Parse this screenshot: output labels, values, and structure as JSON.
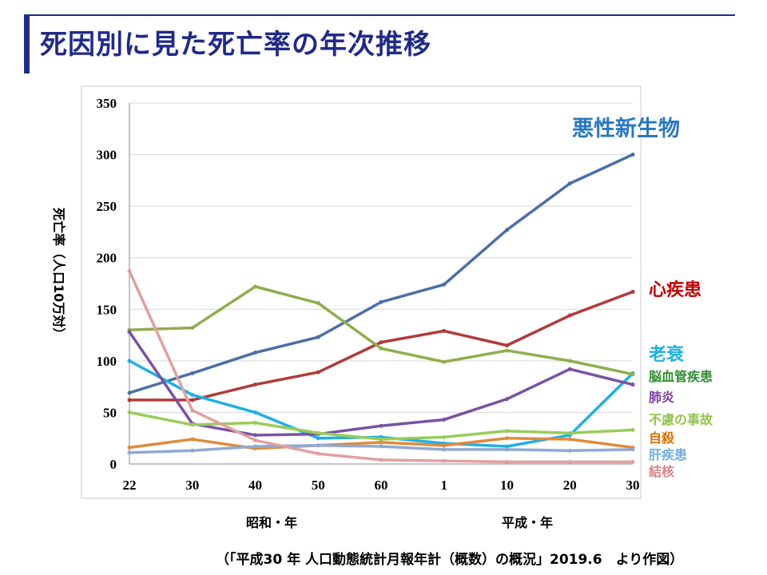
{
  "header": {
    "title": "死因別に見た死亡率の年次推移"
  },
  "footnote": "（「平成30 年 人口動態統計月報年計（概数）の概況」2019.6　より作図）",
  "colors": {
    "悪性新生物": "#4a6fa8",
    "心疾患": "#b23a3a",
    "老衰": "#1fb0e6",
    "脳血管疾患": "#8fae4c",
    "肺炎": "#7a52a3",
    "不慮の事故": "#9acb5a",
    "自殺": "#e08a3a",
    "肝疾患": "#8fa9d1",
    "結核": "#e0a0a0"
  },
  "chart_data": {
    "type": "line",
    "ylabel": "死亡率（人口10万対）",
    "ylim": [
      0,
      350
    ],
    "yticks": [
      0,
      50,
      100,
      150,
      200,
      250,
      300,
      350
    ],
    "x_tick_labels": [
      "22",
      "30",
      "40",
      "50",
      "60",
      "1",
      "10",
      "20",
      "30"
    ],
    "era_labels": [
      "昭和・年",
      "平成・年"
    ],
    "grid": true,
    "legend": "right",
    "x": [
      "昭和22",
      "昭和30",
      "昭和40",
      "昭和50",
      "昭和60",
      "平成1",
      "平成10",
      "平成20",
      "平成30"
    ],
    "series": [
      {
        "name": "悪性新生物",
        "label_color": "#2a78c0",
        "values": [
          69,
          88,
          108,
          123,
          157,
          174,
          227,
          272,
          300
        ]
      },
      {
        "name": "心疾患",
        "label_color": "#c00000",
        "values": [
          62,
          62,
          77,
          89,
          118,
          129,
          115,
          144,
          167
        ]
      },
      {
        "name": "老衰",
        "label_color": "#1fb0e6",
        "values": [
          100,
          67,
          50,
          25,
          26,
          20,
          17,
          28,
          88
        ]
      },
      {
        "name": "脳血管疾患",
        "label_color": "#2f8f2f",
        "values": [
          130,
          132,
          172,
          156,
          112,
          99,
          110,
          100,
          87
        ]
      },
      {
        "name": "肺炎",
        "label_color": "#7a3aa0",
        "values": [
          128,
          39,
          28,
          29,
          37,
          43,
          63,
          92,
          77
        ]
      },
      {
        "name": "不慮の事故",
        "label_color": "#8fc84a",
        "values": [
          50,
          38,
          40,
          30,
          24,
          26,
          32,
          30,
          33
        ]
      },
      {
        "name": "自殺",
        "label_color": "#e07000",
        "values": [
          16,
          24,
          15,
          18,
          21,
          18,
          25,
          24,
          16
        ]
      },
      {
        "name": "肝疾患",
        "label_color": "#6fb0e0",
        "values": [
          11,
          13,
          17,
          18,
          17,
          14,
          14,
          13,
          14
        ]
      },
      {
        "name": "結核",
        "label_color": "#e08080",
        "values": [
          187,
          52,
          23,
          10,
          4,
          3,
          2,
          2,
          2
        ]
      }
    ]
  }
}
